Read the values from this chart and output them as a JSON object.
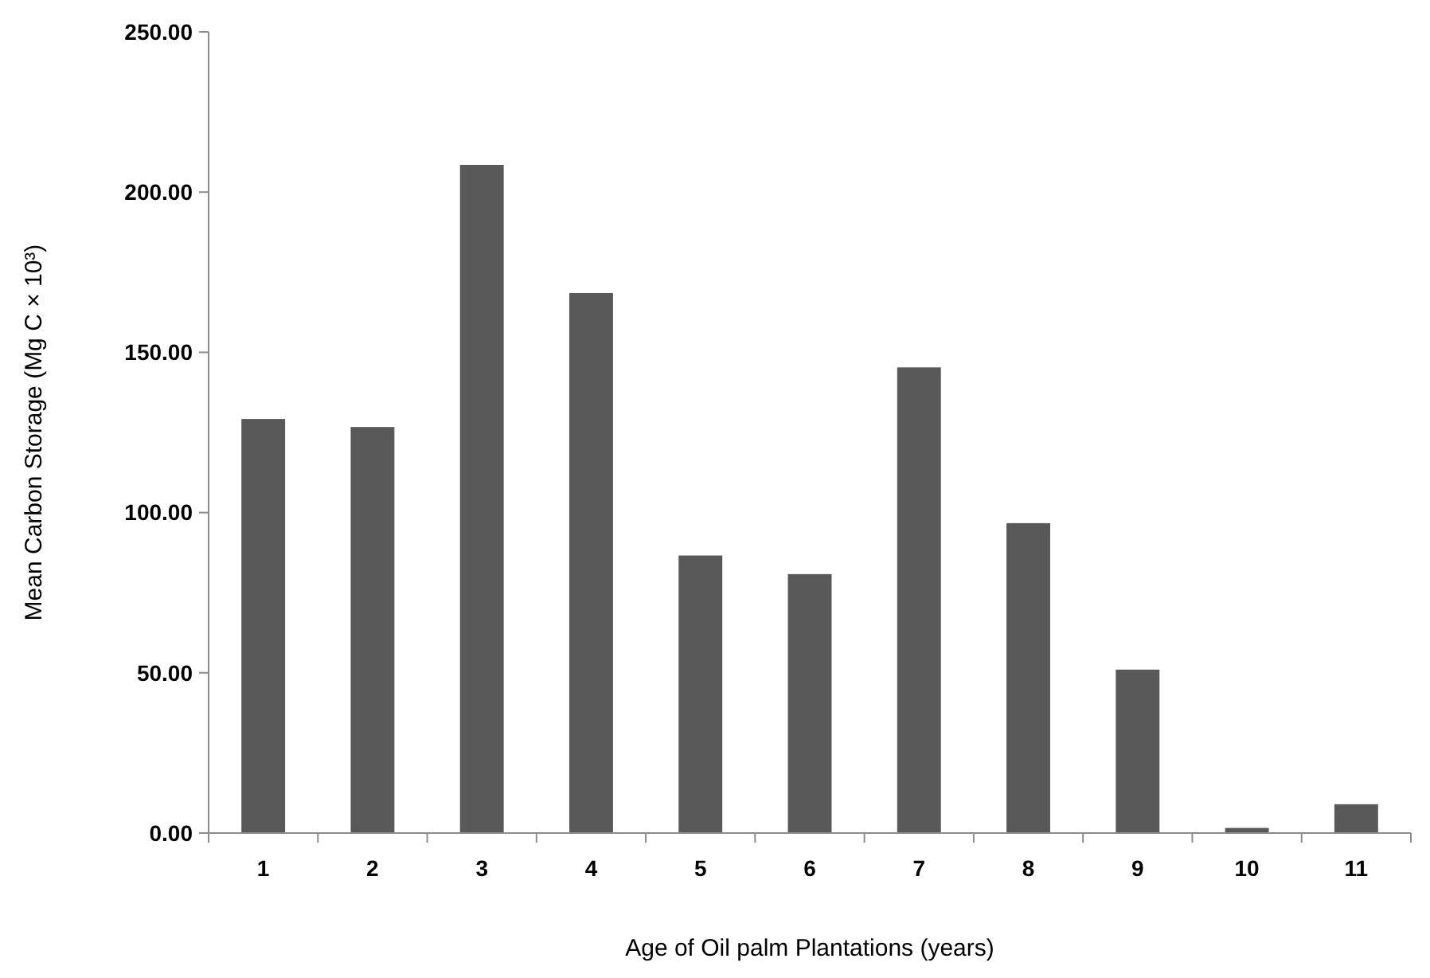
{
  "chart_data": {
    "type": "bar",
    "xlabel": "Age of Oil palm Plantations (years)",
    "ylabel": "Mean Carbon Storage (Mg C × 10³)",
    "categories": [
      "1",
      "2",
      "3",
      "4",
      "5",
      "6",
      "7",
      "8",
      "9",
      "10",
      "11"
    ],
    "values": [
      129.2,
      126.7,
      208.5,
      168.5,
      86.6,
      80.8,
      145.3,
      96.7,
      51.0,
      1.6,
      9.0
    ],
    "color": "#595959",
    "ylim": [
      0,
      250
    ],
    "yticks": [
      {
        "value": 0,
        "label": "0.00"
      },
      {
        "value": 50,
        "label": "50.00"
      },
      {
        "value": 100,
        "label": "100.00"
      },
      {
        "value": 150,
        "label": "150.00"
      },
      {
        "value": 200,
        "label": "200.00"
      },
      {
        "value": 250,
        "label": "250.00"
      }
    ],
    "grid": false
  }
}
